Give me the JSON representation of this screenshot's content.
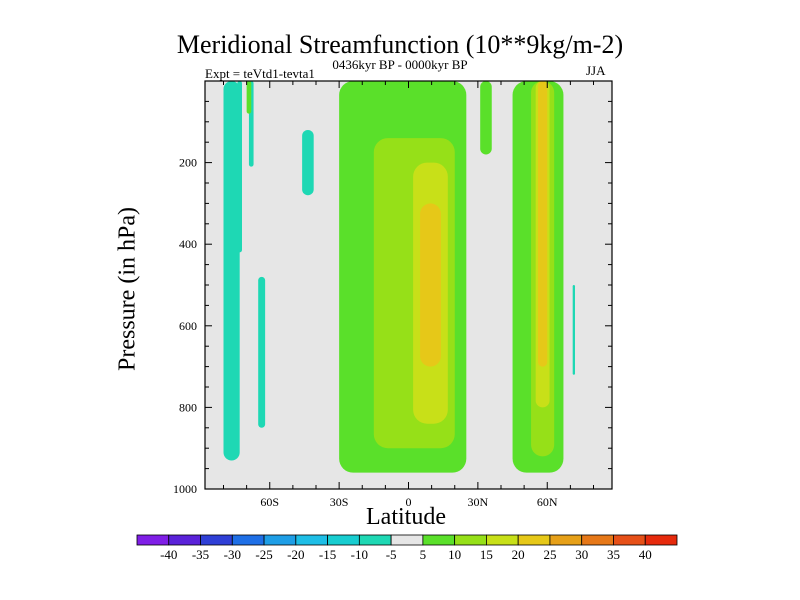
{
  "chart_data": {
    "type": "heatmap",
    "title": "Meridional Streamfunction (10**9kg/m-2)",
    "subtitle": "0436kyr BP - 0000kyr BP",
    "left_string": "Expt = teVtd1-tevta1",
    "right_string": "JJA",
    "xlabel": "Latitude",
    "ylabel": "Pressure (in hPa)",
    "x_ticks": [
      {
        "value": -60,
        "label": "60S"
      },
      {
        "value": -30,
        "label": "30S"
      },
      {
        "value": 0,
        "label": "0"
      },
      {
        "value": 30,
        "label": "30N"
      },
      {
        "value": 60,
        "label": "60N"
      }
    ],
    "xlim": [
      -88,
      88
    ],
    "ylim": [
      1000,
      0
    ],
    "y_ticks": [
      200,
      400,
      600,
      800,
      1000
    ],
    "y_tick_labels": [
      "200",
      "400",
      "600",
      "800",
      "1000"
    ],
    "colorbar": {
      "levels": [
        -40,
        -35,
        -30,
        -25,
        -20,
        -15,
        -10,
        -5,
        5,
        10,
        15,
        20,
        25,
        30,
        35,
        40
      ],
      "labels": [
        "-40",
        "-35",
        "-30",
        "-25",
        "-20",
        "-15",
        "-10",
        "-5",
        "5",
        "10",
        "15",
        "20",
        "25",
        "30",
        "35",
        "40"
      ],
      "colors": [
        "#7f1ee6",
        "#5a22d9",
        "#2f3fd6",
        "#1e6fe6",
        "#1e9ee6",
        "#1ebee6",
        "#18cdd0",
        "#1ed8b4",
        "#e6e6e6",
        "#5ae02a",
        "#96e018",
        "#c8e018",
        "#e6c818",
        "#e6a018",
        "#e67818",
        "#e65018",
        "#e62a0c"
      ]
    },
    "fields": [
      {
        "name": "neg-column-80S",
        "level": -5,
        "lat": [
          -80,
          -73
        ],
        "p": [
          0,
          930
        ]
      },
      {
        "name": "neg-thin-73S",
        "level": -5,
        "lat": [
          -74,
          -72
        ],
        "p": [
          0,
          420
        ]
      },
      {
        "name": "neg-upper-69S",
        "level": -5,
        "lat": [
          -69,
          -67
        ],
        "p": [
          0,
          210
        ]
      },
      {
        "name": "neg-lower-65S",
        "level": -5,
        "lat": [
          -65,
          -62
        ],
        "p": [
          480,
          850
        ]
      },
      {
        "name": "neg-tilted-45S",
        "level": -5,
        "lat": [
          -46,
          -41
        ],
        "p": [
          120,
          280
        ]
      },
      {
        "name": "neg-column-1S",
        "level": -5,
        "lat": [
          -3,
          1
        ],
        "p": [
          340,
          840
        ]
      },
      {
        "name": "neg-thin-70N",
        "level": -5,
        "lat": [
          71,
          72
        ],
        "p": [
          500,
          720
        ]
      },
      {
        "name": "pos-upper-70S",
        "level": 5,
        "lat": [
          -70,
          -68
        ],
        "p": [
          0,
          80
        ]
      },
      {
        "name": "pos-main-cell",
        "level": 5,
        "lat": [
          -30,
          25
        ],
        "p": [
          0,
          960
        ]
      },
      {
        "name": "pos-column-35N",
        "level": 5,
        "lat": [
          31,
          36
        ],
        "p": [
          0,
          180
        ]
      },
      {
        "name": "pos-column-60N",
        "level": 5,
        "lat": [
          45,
          67
        ],
        "p": [
          0,
          960
        ]
      },
      {
        "name": "core-main-10",
        "level": 10,
        "lat": [
          -15,
          20
        ],
        "p": [
          140,
          900
        ]
      },
      {
        "name": "core-main-15",
        "level": 15,
        "lat": [
          2,
          17
        ],
        "p": [
          200,
          840
        ]
      },
      {
        "name": "core-main-20",
        "level": 20,
        "lat": [
          5,
          14
        ],
        "p": [
          300,
          700
        ]
      },
      {
        "name": "core-60N-10",
        "level": 10,
        "lat": [
          53,
          63
        ],
        "p": [
          0,
          920
        ]
      },
      {
        "name": "core-60N-15",
        "level": 15,
        "lat": [
          55,
          61
        ],
        "p": [
          0,
          800
        ]
      },
      {
        "name": "core-60N-20",
        "level": 20,
        "lat": [
          56,
          60
        ],
        "p": [
          0,
          700
        ]
      }
    ]
  }
}
